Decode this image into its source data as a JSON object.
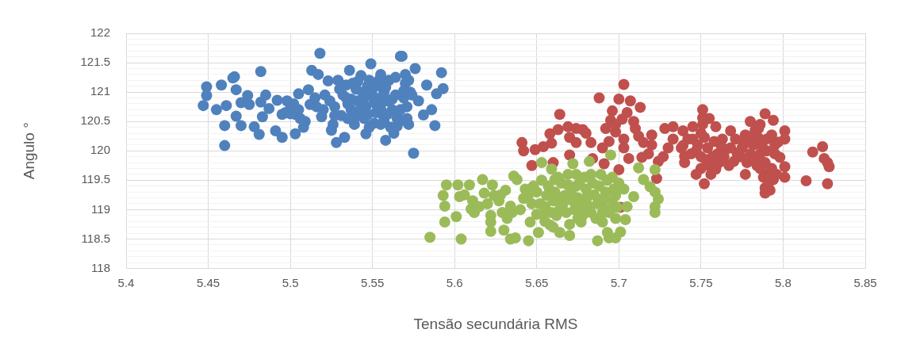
{
  "chart_data": {
    "type": "scatter",
    "xlabel": "Tensão secundária RMS",
    "ylabel": "Angulo °",
    "grid": true,
    "marker": "circle",
    "xlim": [
      5.4,
      5.85
    ],
    "xticks": [
      5.4,
      5.45,
      5.5,
      5.55,
      5.6,
      5.65,
      5.7,
      5.75,
      5.8,
      5.85
    ],
    "ylim": [
      118,
      122
    ],
    "yticks": [
      118,
      {
        "value": 118.1,
        "label": null
      },
      {
        "value": 118.2,
        "label": null
      },
      {
        "value": 118.3,
        "label": null
      },
      {
        "value": 118.4,
        "label": null
      },
      118.5,
      {
        "value": 118.6,
        "label": null
      },
      {
        "value": 118.7,
        "label": null
      },
      {
        "value": 118.8,
        "label": null
      },
      {
        "value": 118.9,
        "label": null
      },
      119,
      {
        "value": 119.1,
        "label": null
      },
      {
        "value": 119.2,
        "label": null
      },
      {
        "value": 119.3,
        "label": null
      },
      {
        "value": 119.4,
        "label": null
      },
      119.5,
      {
        "value": 119.6,
        "label": null
      },
      {
        "value": 119.7,
        "label": null
      },
      {
        "value": 119.8,
        "label": null
      },
      {
        "value": 119.9,
        "label": null
      },
      120,
      {
        "value": 120.1,
        "label": null
      },
      {
        "value": 120.2,
        "label": null
      },
      {
        "value": 120.3,
        "label": null
      },
      {
        "value": 120.4,
        "label": null
      },
      120.5,
      {
        "value": 120.6,
        "label": null
      },
      {
        "value": 120.7,
        "label": null
      },
      {
        "value": 120.8,
        "label": null
      },
      {
        "value": 120.9,
        "label": null
      },
      121,
      {
        "value": 121.1,
        "label": null
      },
      {
        "value": 121.2,
        "label": null
      },
      {
        "value": 121.3,
        "label": null
      },
      {
        "value": 121.4,
        "label": null
      },
      121.5,
      {
        "value": 121.6,
        "label": null
      },
      {
        "value": 121.7,
        "label": null
      },
      {
        "value": 121.8,
        "label": null
      },
      {
        "value": 121.9,
        "label": null
      },
      122
    ],
    "series": [
      {
        "color": "#4f81bd",
        "x": [
          5.447,
          5.449,
          5.449,
          5.455,
          5.458,
          5.461,
          5.46,
          5.46,
          5.465,
          5.466,
          5.467,
          5.467,
          5.47,
          5.47,
          5.474,
          5.475,
          5.478,
          5.481,
          5.482,
          5.482,
          5.483,
          5.487,
          5.492,
          5.491,
          5.495,
          5.497,
          5.5,
          5.503,
          5.505,
          5.502,
          5.509,
          5.511,
          5.512,
          5.513,
          5.517,
          5.518,
          5.519,
          5.521,
          5.523,
          5.526,
          5.528,
          5.527,
          5.53,
          5.533,
          5.531,
          5.534,
          5.536,
          5.537,
          5.538,
          5.539,
          5.541,
          5.543,
          5.542,
          5.544,
          5.546,
          5.546,
          5.548,
          5.549,
          5.55,
          5.551,
          5.552,
          5.553,
          5.555,
          5.556,
          5.557,
          5.558,
          5.559,
          5.56,
          5.561,
          5.562,
          5.564,
          5.565,
          5.567,
          5.568,
          5.568,
          5.569,
          5.57,
          5.571,
          5.573,
          5.576,
          5.575,
          5.578,
          5.581,
          5.583,
          5.586,
          5.588,
          5.589,
          5.592,
          5.593,
          5.515,
          5.52,
          5.524,
          5.529,
          5.532,
          5.535,
          5.54,
          5.545,
          5.547,
          5.552,
          5.554,
          5.557,
          5.563,
          5.57,
          5.525,
          5.535,
          5.505,
          5.498,
          5.485,
          5.508,
          5.534,
          5.537,
          5.539,
          5.541,
          5.543,
          5.545,
          5.547,
          5.551,
          5.555,
          5.556,
          5.558,
          5.559,
          5.562,
          5.564,
          5.567,
          5.569,
          5.572,
          5.574,
          5.571,
          5.565,
          5.555,
          5.548,
          5.527,
          5.495,
          5.503,
          5.506,
          5.516,
          5.5,
          5.572
        ],
        "values": [
          120.77,
          121.09,
          120.94,
          120.7,
          121.12,
          120.77,
          120.43,
          120.09,
          121.24,
          121.26,
          121.04,
          120.59,
          120.43,
          120.82,
          120.94,
          120.79,
          120.41,
          120.28,
          121.35,
          120.83,
          120.58,
          120.72,
          120.86,
          120.34,
          120.23,
          120.65,
          120.63,
          120.29,
          120.97,
          120.8,
          120.5,
          121.04,
          120.79,
          121.37,
          121.3,
          121.66,
          120.58,
          120.95,
          121.19,
          120.45,
          120.14,
          120.75,
          121.05,
          120.23,
          120.6,
          120.9,
          121.37,
          120.7,
          121.15,
          120.45,
          120.85,
          121.28,
          120.6,
          121,
          120.29,
          120.75,
          121.2,
          121.48,
          120.95,
          120.47,
          121.1,
          120.8,
          121.3,
          120.62,
          121,
          120.18,
          120.85,
          121.2,
          120.4,
          120.7,
          121.25,
          120.55,
          121.61,
          121.61,
          120.52,
          120.9,
          121.15,
          120.75,
          121,
          121.4,
          119.96,
          120.85,
          120.61,
          121.12,
          120.7,
          120.43,
          120.97,
          121.33,
          121.06,
          120.9,
          120.7,
          120.85,
          121.2,
          120.95,
          120.8,
          121.05,
          120.55,
          121.1,
          120.65,
          121.2,
          120.5,
          120.3,
          121.3,
          120.35,
          120.55,
          120.7,
          120.85,
          120.95,
          120.4,
          121.12,
          120.88,
          120.62,
          121.18,
          120.72,
          120.9,
          120.62,
          120.82,
          120.72,
          120.92,
          121.08,
          120.62,
          120.88,
          120.95,
          120.7,
          121.02,
          121.2,
          120.95,
          120.55,
          120.42,
          120.45,
          120.4,
          120.6,
          120.62,
          120.62,
          120.55,
          120.75,
          120.72,
          120.45
        ]
      },
      {
        "color": "#c0504d",
        "x": [
          5.703,
          5.688,
          5.7,
          5.707,
          5.713,
          5.696,
          5.664,
          5.695,
          5.702,
          5.709,
          5.692,
          5.698,
          5.71,
          5.658,
          5.663,
          5.669,
          5.674,
          5.678,
          5.67,
          5.674,
          5.683,
          5.659,
          5.654,
          5.649,
          5.641,
          5.642,
          5.647,
          5.66,
          5.67,
          5.684,
          5.691,
          5.7,
          5.694,
          5.706,
          5.703,
          5.714,
          5.715,
          5.72,
          5.724,
          5.723,
          5.728,
          5.733,
          5.73,
          5.738,
          5.739,
          5.74,
          5.701,
          5.751,
          5.751,
          5.745,
          5.759,
          5.768,
          5.78,
          5.789,
          5.794,
          5.801,
          5.801,
          5.785,
          5.777,
          5.775,
          5.758,
          5.752,
          5.739,
          5.74,
          5.747,
          5.747,
          5.752,
          5.759,
          5.765,
          5.77,
          5.777,
          5.783,
          5.79,
          5.791,
          5.789,
          5.789,
          5.792,
          5.794,
          5.798,
          5.801,
          5.801,
          5.814,
          5.818,
          5.824,
          5.825,
          5.827,
          5.828,
          5.827,
          5.793,
          5.779,
          5.772,
          5.745,
          5.75,
          5.755,
          5.76,
          5.763,
          5.767,
          5.782,
          5.786,
          5.795,
          5.755,
          5.785,
          5.72,
          5.69,
          5.68,
          5.742,
          5.744,
          5.748,
          5.75,
          5.751,
          5.75,
          5.753,
          5.754,
          5.756,
          5.757,
          5.761,
          5.762,
          5.764,
          5.768,
          5.771,
          5.774,
          5.776,
          5.778,
          5.78,
          5.781,
          5.783,
          5.784,
          5.786,
          5.787,
          5.788,
          5.789,
          5.79,
          5.791,
          5.793,
          5.795,
          5.796,
          5.797,
          5.786,
          5.703,
          5.705,
          5.698,
          5.712,
          5.718,
          5.733,
          5.727
        ],
        "values": [
          121.13,
          120.9,
          120.88,
          120.85,
          120.74,
          120.68,
          120.62,
          120.52,
          120.54,
          120.5,
          120.38,
          120.32,
          120.38,
          120.29,
          120.36,
          120.41,
          120.38,
          120.36,
          120.23,
          120.14,
          120.14,
          120.13,
          120.07,
          120.02,
          120.14,
          120,
          119.75,
          119.8,
          119.93,
          119.87,
          119.78,
          119.68,
          120.16,
          119.87,
          120.05,
          119.89,
          120.14,
          120.27,
          119.82,
          119.53,
          120.38,
          120.41,
          120.05,
          120.05,
          120.34,
          119.91,
          119.04,
          120.7,
          120.56,
          120.41,
          120.41,
          120.34,
          120.5,
          120.63,
          120.52,
          120.34,
          120.2,
          120.38,
          120.27,
          120.05,
          120.16,
          120.23,
          120.09,
          119.8,
          120,
          119.6,
          119.44,
          119.69,
          120.02,
          119.82,
          119.6,
          119.87,
          120,
          119.62,
          119.37,
          119.28,
          119.33,
          119.51,
          119.89,
          119.73,
          119.55,
          119.49,
          119.98,
          120.07,
          119.87,
          119.8,
          119.73,
          119.44,
          120.27,
          120.14,
          119.96,
          120.2,
          119.9,
          119.75,
          119.95,
          120.2,
          119.75,
          120.1,
          119.7,
          120.1,
          120.55,
          120.22,
          120.1,
          120.05,
          120.3,
          120.2,
          119.95,
          120.1,
          120.3,
          120.45,
          119.7,
          119.85,
          120.05,
          119.6,
          119.9,
          119.8,
          120.1,
          119.9,
          120.05,
          120.2,
          119.9,
          120.15,
          119.8,
          119.95,
          120.25,
          120.35,
          119.75,
          119.95,
          120.1,
          119.55,
          119.8,
          120.2,
          119.45,
          119.7,
          119.95,
          119.6,
          120.15,
          120.45,
          120.2,
          120.65,
          120.45,
          120.25,
          119.95,
          120.2,
          119.9
        ]
      },
      {
        "color": "#9bbb59",
        "x": [
          5.585,
          5.594,
          5.593,
          5.594,
          5.595,
          5.601,
          5.602,
          5.603,
          5.604,
          5.609,
          5.61,
          5.611,
          5.617,
          5.618,
          5.622,
          5.622,
          5.623,
          5.624,
          5.622,
          5.629,
          5.63,
          5.631,
          5.634,
          5.634,
          5.637,
          5.636,
          5.638,
          5.645,
          5.646,
          5.642,
          5.65,
          5.653,
          5.651,
          5.654,
          5.656,
          5.659,
          5.661,
          5.658,
          5.664,
          5.664,
          5.667,
          5.67,
          5.669,
          5.672,
          5.674,
          5.677,
          5.68,
          5.682,
          5.683,
          5.687,
          5.69,
          5.693,
          5.694,
          5.698,
          5.701,
          5.695,
          5.696,
          5.698,
          5.699,
          5.704,
          5.703,
          5.709,
          5.712,
          5.715,
          5.719,
          5.722,
          5.722,
          5.724,
          5.722,
          5.722,
          5.64,
          5.645,
          5.648,
          5.652,
          5.655,
          5.66,
          5.662,
          5.665,
          5.666,
          5.668,
          5.671,
          5.673,
          5.675,
          5.676,
          5.678,
          5.68,
          5.682,
          5.685,
          5.686,
          5.688,
          5.69,
          5.692,
          5.694,
          5.696,
          5.627,
          5.632,
          5.615,
          5.7,
          5.705,
          5.643,
          5.647,
          5.65,
          5.653,
          5.655,
          5.657,
          5.659,
          5.661,
          5.663,
          5.664,
          5.669,
          5.672,
          5.674,
          5.677,
          5.679,
          5.681,
          5.683,
          5.684,
          5.687,
          5.689,
          5.691,
          5.693,
          5.695,
          5.697,
          5.698,
          5.67,
          5.66,
          5.675,
          5.69,
          5.62,
          5.628,
          5.635,
          5.612,
          5.606
        ],
        "values": [
          118.53,
          118.79,
          119.24,
          119.06,
          119.42,
          118.88,
          119.42,
          119.22,
          118.5,
          119.42,
          119.01,
          119.15,
          119.51,
          119.28,
          118.79,
          118.9,
          119.42,
          119.24,
          118.63,
          118.95,
          118.65,
          119.33,
          119.06,
          118.5,
          118.52,
          119.57,
          119.51,
          118.47,
          118.79,
          119.19,
          118.92,
          119.8,
          118.61,
          118.92,
          119.24,
          119.69,
          119.51,
          118.74,
          118.61,
          119.01,
          119.24,
          118.56,
          119.42,
          119.78,
          119.6,
          118.79,
          119.15,
          119.82,
          119.6,
          118.47,
          118.79,
          118.61,
          118.52,
          118.52,
          118.62,
          119.93,
          119.55,
          119.24,
          119.04,
          118.83,
          119.35,
          119.22,
          119.71,
          119.51,
          119.39,
          119.68,
          119.3,
          119.18,
          119.05,
          118.95,
          119,
          119.25,
          119.4,
          119.1,
          118.8,
          119.15,
          118.9,
          119.45,
          119.1,
          118.95,
          119.3,
          119,
          119.2,
          119.45,
          118.9,
          119.35,
          119.05,
          119.25,
          118.85,
          119.4,
          119.1,
          119.3,
          118.95,
          119.15,
          119.15,
          118.85,
          119.05,
          119.45,
          119.05,
          119.35,
          119.1,
          119.3,
          119.5,
          119.05,
          119.4,
          118.95,
          119.3,
          119.55,
          119.2,
          119.6,
          119.15,
          119.4,
          119.05,
          119.55,
          119.25,
          118.95,
          119.45,
          119.1,
          119.6,
          119.2,
          119.5,
          119,
          119.35,
          118.85,
          118.75,
          118.7,
          118.85,
          118.95,
          119.1,
          119.25,
          118.95,
          118.95,
          119.25
        ]
      }
    ]
  }
}
